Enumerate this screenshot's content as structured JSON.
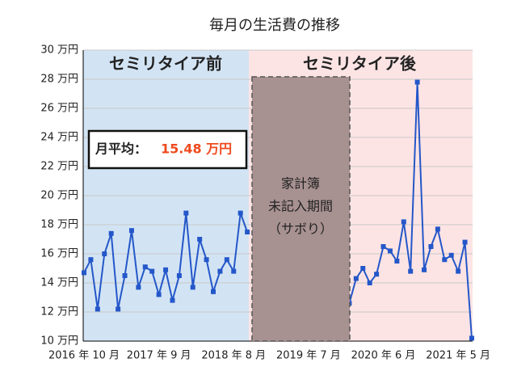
{
  "chart_data": {
    "type": "line",
    "title": "毎月の生活費の推移",
    "categories": [
      "2016 年 10 月",
      null,
      null,
      null,
      null,
      null,
      null,
      null,
      null,
      null,
      null,
      "2017 年 9 月",
      null,
      null,
      null,
      null,
      null,
      null,
      null,
      null,
      null,
      null,
      "2018 年 8 月",
      null,
      null,
      null,
      null,
      null,
      null,
      null,
      null,
      null,
      null,
      "2019 年 7 月",
      null,
      null,
      null,
      null,
      null,
      null,
      null,
      null,
      null,
      null,
      "2020 年 6 月",
      null,
      null,
      null,
      null,
      null,
      null,
      null,
      null,
      null,
      null,
      "2021 年 5 月",
      null,
      null
    ],
    "values": [
      14.7,
      15.6,
      12.2,
      16.0,
      17.4,
      12.2,
      14.5,
      17.6,
      13.7,
      15.1,
      14.8,
      13.2,
      14.9,
      12.8,
      14.5,
      18.8,
      13.7,
      17.0,
      15.6,
      13.4,
      14.8,
      15.6,
      14.8,
      18.8,
      17.5,
      null,
      null,
      null,
      null,
      null,
      null,
      null,
      null,
      null,
      null,
      null,
      null,
      null,
      null,
      12.6,
      14.3,
      15.0,
      14.0,
      14.6,
      16.5,
      16.2,
      15.5,
      18.2,
      14.8,
      27.8,
      14.9,
      16.5,
      17.7,
      15.6,
      15.9,
      14.8,
      16.8,
      10.2
    ],
    "color": "#2457c9",
    "ylim": [
      10,
      30
    ],
    "yticks": [
      {
        "value": 10,
        "label": "10 万円"
      },
      {
        "value": 12,
        "label": "12 万円"
      },
      {
        "value": 14,
        "label": "14 万円"
      },
      {
        "value": 16,
        "label": "16 万円"
      },
      {
        "value": 18,
        "label": "18 万円"
      },
      {
        "value": 20,
        "label": "20 万円"
      },
      {
        "value": 22,
        "label": "22 万円"
      },
      {
        "value": 24,
        "label": "24 万円"
      },
      {
        "value": 26,
        "label": "26 万円"
      },
      {
        "value": 28,
        "label": "28 万円"
      },
      {
        "value": 30,
        "label": "30 万円"
      }
    ],
    "grid": true,
    "annotations": {
      "before_label": "セミリタイア前",
      "after_label": "セミリタイア後",
      "average_label": "月平均：",
      "average_value": "15.48 万円",
      "gap_note": [
        "家計簿",
        "未記入期間",
        "（サボり）"
      ]
    }
  }
}
